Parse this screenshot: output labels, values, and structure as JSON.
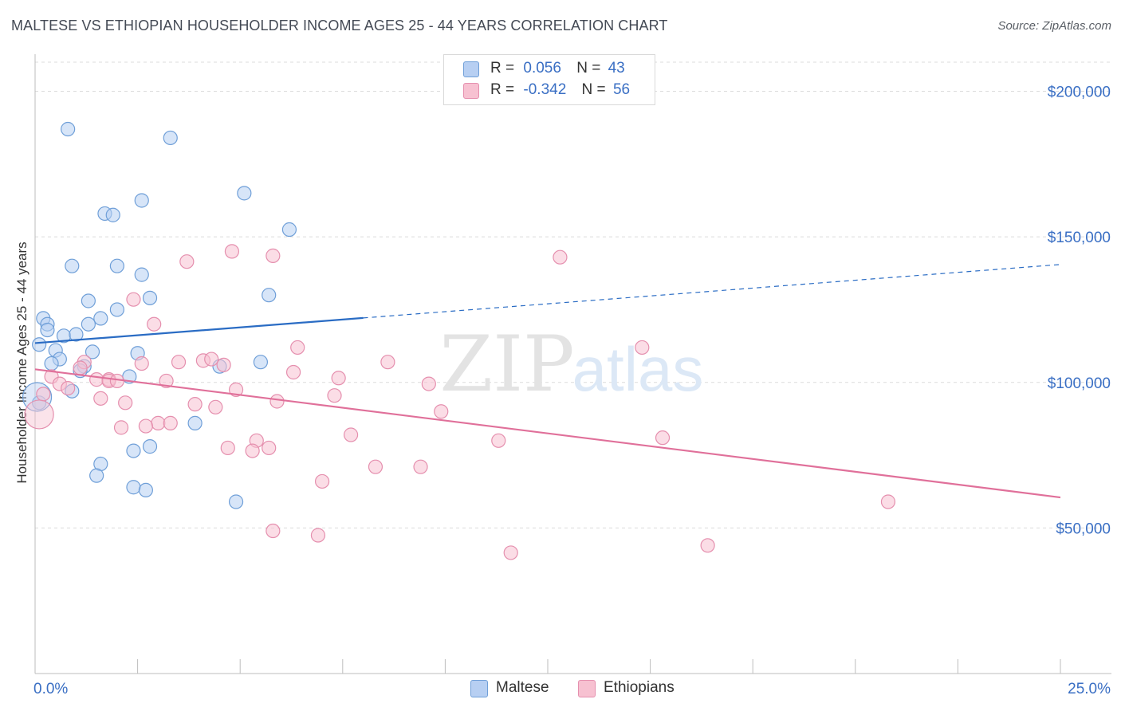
{
  "title": "MALTESE VS ETHIOPIAN HOUSEHOLDER INCOME AGES 25 - 44 YEARS CORRELATION CHART",
  "source": "Source: ZipAtlas.com",
  "watermark": {
    "zip": "ZIP",
    "atlas": "atlas"
  },
  "legend": {
    "r_label": "R =",
    "n_label": "N =",
    "rows": [
      {
        "name": "Maltese",
        "r": "0.056",
        "n": "43"
      },
      {
        "name": "Ethiopians",
        "r": "-0.342",
        "n": "56"
      }
    ]
  },
  "chart_data": {
    "type": "scatter",
    "title": "MALTESE VS ETHIOPIAN HOUSEHOLDER INCOME AGES 25 - 44 YEARS CORRELATION CHART",
    "xlabel": "",
    "ylabel": "Householder Income Ages 25 - 44 years",
    "xlim": [
      0,
      25
    ],
    "ylim": [
      0,
      210000
    ],
    "x_tick_labels": [
      "0.0%",
      "25.0%"
    ],
    "y_ticks": [
      50000,
      100000,
      150000,
      200000
    ],
    "y_tick_labels": [
      "$50,000",
      "$100,000",
      "$150,000",
      "$200,000"
    ],
    "grid": true,
    "legend_position": "top-center",
    "colors": {
      "Maltese": {
        "fill": "#b7cff2",
        "stroke": "#6f9fd8",
        "line": "#2a6cc4"
      },
      "Ethiopians": {
        "fill": "#f7c1d1",
        "stroke": "#e58fae",
        "line": "#e0709a"
      }
    },
    "series": [
      {
        "name": "Maltese",
        "trend": {
          "x0": 0,
          "y0": 113500,
          "x1": 25,
          "y1": 140500,
          "solid_until_x": 8
        },
        "points": [
          [
            0.8,
            187000
          ],
          [
            3.3,
            184000
          ],
          [
            5.1,
            165000
          ],
          [
            2.6,
            162500
          ],
          [
            1.7,
            158000
          ],
          [
            1.9,
            157500
          ],
          [
            6.2,
            152500
          ],
          [
            0.9,
            140000
          ],
          [
            2.0,
            140000
          ],
          [
            2.6,
            137000
          ],
          [
            1.3,
            128000
          ],
          [
            2.8,
            129000
          ],
          [
            5.7,
            130000
          ],
          [
            0.2,
            122000
          ],
          [
            1.6,
            122000
          ],
          [
            2.0,
            125000
          ],
          [
            0.3,
            120000
          ],
          [
            1.3,
            120000
          ],
          [
            0.3,
            118000
          ],
          [
            0.7,
            116000
          ],
          [
            1.0,
            116500
          ],
          [
            0.1,
            113000
          ],
          [
            0.5,
            111000
          ],
          [
            2.5,
            110000
          ],
          [
            1.4,
            110500
          ],
          [
            0.6,
            108000
          ],
          [
            0.4,
            106500
          ],
          [
            1.2,
            105500
          ],
          [
            4.5,
            105500
          ],
          [
            5.5,
            107000
          ],
          [
            1.1,
            104000
          ],
          [
            2.3,
            102000
          ],
          [
            0.9,
            97000
          ],
          [
            0.1,
            93000
          ],
          [
            3.9,
            86000
          ],
          [
            2.8,
            78000
          ],
          [
            2.4,
            76500
          ],
          [
            1.6,
            72000
          ],
          [
            1.5,
            68000
          ],
          [
            2.4,
            64000
          ],
          [
            2.7,
            63000
          ],
          [
            4.9,
            59000
          ],
          [
            0.05,
            95000
          ]
        ]
      },
      {
        "name": "Ethiopians",
        "trend": {
          "x0": 0,
          "y0": 104500,
          "x1": 25,
          "y1": 60500,
          "solid_until_x": 25
        },
        "points": [
          [
            4.8,
            145000
          ],
          [
            5.8,
            143500
          ],
          [
            12.8,
            143000
          ],
          [
            3.7,
            141500
          ],
          [
            2.4,
            128500
          ],
          [
            2.9,
            120000
          ],
          [
            6.4,
            112000
          ],
          [
            14.8,
            112000
          ],
          [
            4.1,
            107500
          ],
          [
            4.3,
            108000
          ],
          [
            3.5,
            107000
          ],
          [
            2.6,
            106500
          ],
          [
            1.2,
            107000
          ],
          [
            8.6,
            107000
          ],
          [
            4.6,
            106000
          ],
          [
            1.1,
            105000
          ],
          [
            6.3,
            103500
          ],
          [
            0.4,
            102000
          ],
          [
            1.5,
            101000
          ],
          [
            1.8,
            101000
          ],
          [
            7.4,
            101500
          ],
          [
            1.8,
            100500
          ],
          [
            2.0,
            100500
          ],
          [
            3.2,
            100500
          ],
          [
            0.6,
            99500
          ],
          [
            9.6,
            99500
          ],
          [
            0.8,
            98000
          ],
          [
            4.9,
            97500
          ],
          [
            0.2,
            96000
          ],
          [
            7.3,
            95500
          ],
          [
            1.6,
            94500
          ],
          [
            5.9,
            93500
          ],
          [
            2.2,
            93000
          ],
          [
            3.9,
            92500
          ],
          [
            4.4,
            91500
          ],
          [
            9.9,
            90000
          ],
          [
            3.0,
            86000
          ],
          [
            3.3,
            86000
          ],
          [
            2.7,
            85000
          ],
          [
            2.1,
            84500
          ],
          [
            7.7,
            82000
          ],
          [
            15.3,
            81000
          ],
          [
            11.3,
            80000
          ],
          [
            5.4,
            80000
          ],
          [
            4.7,
            77500
          ],
          [
            5.7,
            77500
          ],
          [
            5.3,
            76500
          ],
          [
            8.3,
            71000
          ],
          [
            9.4,
            71000
          ],
          [
            7.0,
            66000
          ],
          [
            20.8,
            59000
          ],
          [
            5.8,
            49000
          ],
          [
            6.9,
            47500
          ],
          [
            16.4,
            44000
          ],
          [
            11.6,
            41500
          ],
          [
            0.1,
            89000
          ]
        ]
      }
    ]
  }
}
